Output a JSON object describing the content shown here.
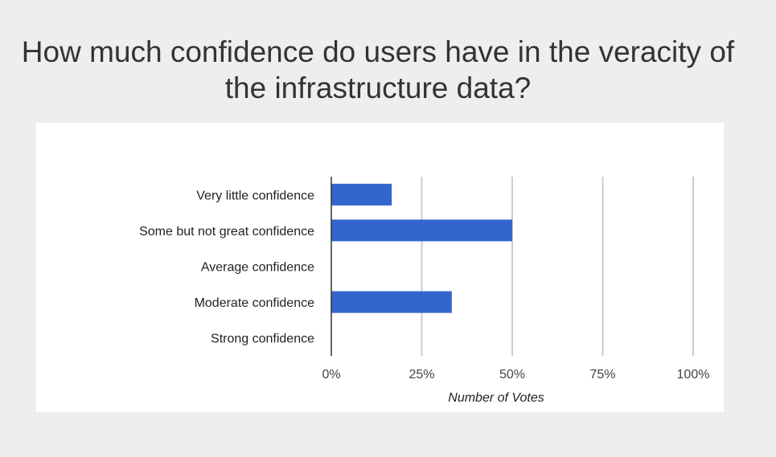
{
  "chart_data": {
    "type": "bar",
    "orientation": "horizontal",
    "title": "How much confidence do users have in the veracity of the infrastructure data?",
    "categories": [
      "Very little confidence",
      "Some but not great confidence",
      "Average confidence",
      "Moderate confidence",
      "Strong confidence"
    ],
    "values": [
      16.7,
      50,
      0,
      33.3,
      0
    ],
    "xlabel": "Number of Votes",
    "ylabel": "",
    "xlim": [
      0,
      100
    ],
    "x_ticks": [
      "0%",
      "25%",
      "50%",
      "75%",
      "100%"
    ],
    "grid": true,
    "legend": "none",
    "bar_color": "#3366cc"
  }
}
